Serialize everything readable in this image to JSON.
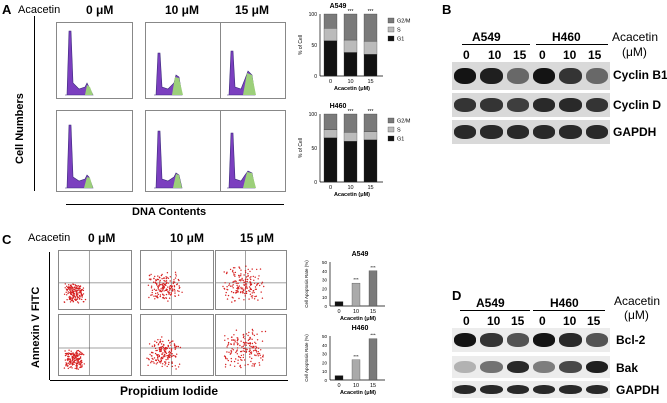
{
  "panelA": {
    "letter": "A",
    "treatment_label": "Acacetin",
    "concentrations": [
      "0 μM",
      "10 μM",
      "15 μM"
    ],
    "y_label": "Cell Numbers",
    "x_label": "DNA Contents",
    "colors": {
      "g1": "#7b3fbf",
      "s": "#4d4dc8",
      "g2m": "#9ccf7a"
    },
    "chart_data": [
      {
        "type": "bar",
        "title": "A549",
        "categories": [
          "0",
          "10",
          "15"
        ],
        "series": [
          {
            "name": "G1",
            "values": [
              57,
              38,
              35
            ]
          },
          {
            "name": "S",
            "values": [
              20,
              20,
              21
            ]
          },
          {
            "name": "G2/M",
            "values": [
              23,
              42,
              44
            ]
          }
        ],
        "significance": [
          "",
          "***",
          "***"
        ],
        "ylabel": "% of Cell",
        "xlabel": "Acacetin (μM)",
        "ylim": [
          0,
          100
        ],
        "yticks": [
          "0",
          "50",
          "100"
        ]
      },
      {
        "type": "bar",
        "title": "H460",
        "categories": [
          "0",
          "10",
          "15"
        ],
        "series": [
          {
            "name": "G1",
            "values": [
              65,
              60,
              62
            ]
          },
          {
            "name": "S",
            "values": [
              12,
              13,
              12
            ]
          },
          {
            "name": "G2/M",
            "values": [
              23,
              27,
              26
            ]
          }
        ],
        "significance": [
          "",
          "***",
          "***"
        ],
        "ylabel": "% of Cell",
        "xlabel": "Acacetin (μM)",
        "ylim": [
          0,
          100
        ],
        "yticks": [
          "0",
          "50",
          "100"
        ]
      }
    ]
  },
  "panelB": {
    "letter": "B",
    "cell_lines": [
      "A549",
      "H460"
    ],
    "treatment": "Acacetin",
    "unit": "(μM)",
    "lanes": [
      "0",
      "10",
      "15",
      "0",
      "10",
      "15"
    ],
    "proteins": [
      "Cyclin B1",
      "Cyclin D",
      "GAPDH"
    ],
    "band_intensity": [
      [
        1.0,
        0.95,
        0.6,
        1.0,
        0.85,
        0.6
      ],
      [
        0.85,
        0.85,
        0.8,
        0.9,
        0.9,
        0.85
      ],
      [
        0.9,
        0.9,
        0.9,
        0.9,
        0.9,
        0.9
      ]
    ]
  },
  "panelC": {
    "letter": "C",
    "treatment_label": "Acacetin",
    "concentrations": [
      "0 μM",
      "10 μM",
      "15 μM"
    ],
    "y_label": "Annexin V FITC",
    "x_label": "Propidium Iodide",
    "chart_data": [
      {
        "type": "bar",
        "title": "A549",
        "categories": [
          "0",
          "10",
          "15"
        ],
        "values": [
          5,
          26,
          40
        ],
        "significance": [
          "",
          "***",
          "***"
        ],
        "ylabel": "Cell Apoptosis Rate (%)",
        "xlabel": "Acacetin (μM)",
        "ylim": [
          0,
          50
        ],
        "yticks": [
          "0",
          "10",
          "20",
          "30",
          "40",
          "50"
        ]
      },
      {
        "type": "bar",
        "title": "H460",
        "categories": [
          "0",
          "10",
          "15"
        ],
        "values": [
          5,
          23,
          47
        ],
        "significance": [
          "",
          "***",
          "***"
        ],
        "ylabel": "Cell Apoptosis Rate (%)",
        "xlabel": "Acacetin (μM)",
        "ylim": [
          0,
          50
        ],
        "yticks": [
          "0",
          "10",
          "20",
          "30",
          "40",
          "50"
        ]
      }
    ]
  },
  "panelD": {
    "letter": "D",
    "cell_lines": [
      "A549",
      "H460"
    ],
    "treatment": "Acacetin",
    "unit": "(μM)",
    "lanes": [
      "0",
      "10",
      "15",
      "0",
      "10",
      "15"
    ],
    "proteins": [
      "Bcl-2",
      "Bak",
      "GAPDH"
    ],
    "band_intensity": [
      [
        1.0,
        0.85,
        0.7,
        1.0,
        0.9,
        0.7
      ],
      [
        0.25,
        0.55,
        0.9,
        0.5,
        0.75,
        0.95
      ],
      [
        0.9,
        0.9,
        0.9,
        0.9,
        0.9,
        0.9
      ]
    ]
  }
}
